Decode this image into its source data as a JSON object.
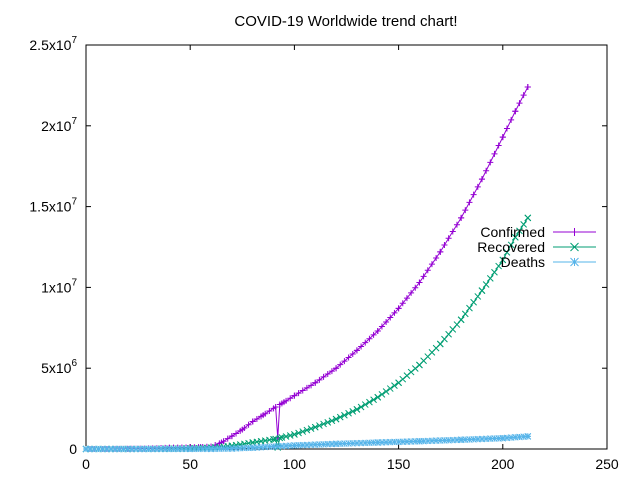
{
  "chart_data": {
    "type": "line",
    "title": "COVID-19 Worldwide trend chart!",
    "xlabel": "",
    "ylabel": "",
    "xlim": [
      0,
      250
    ],
    "ylim": [
      0,
      25000000
    ],
    "x_ticks": [
      "0",
      "50",
      "100",
      "150",
      "200",
      "250"
    ],
    "y_ticks": [
      {
        "value": 0,
        "base": "0",
        "exp": ""
      },
      {
        "value": 5000000,
        "base": "5x10",
        "exp": "6"
      },
      {
        "value": 10000000,
        "base": "1x10",
        "exp": "7"
      },
      {
        "value": 15000000,
        "base": "1.5x10",
        "exp": "7"
      },
      {
        "value": 20000000,
        "base": "2x10",
        "exp": "7"
      },
      {
        "value": 25000000,
        "base": "2.5x10",
        "exp": "7"
      }
    ],
    "grid": false,
    "legend_position": "right",
    "series": [
      {
        "name": "Confirmed",
        "color": "#9400d3",
        "marker": "plus",
        "points": [
          [
            0,
            600
          ],
          [
            10,
            1000
          ],
          [
            20,
            10000
          ],
          [
            30,
            30000
          ],
          [
            40,
            80000
          ],
          [
            50,
            100000
          ],
          [
            55,
            120000
          ],
          [
            60,
            150000
          ],
          [
            65,
            400000
          ],
          [
            70,
            800000
          ],
          [
            75,
            1200000
          ],
          [
            80,
            1700000
          ],
          [
            85,
            2100000
          ],
          [
            91,
            2600000
          ],
          [
            92,
            700000
          ],
          [
            93,
            2750000
          ],
          [
            95,
            2900000
          ],
          [
            100,
            3300000
          ],
          [
            110,
            4100000
          ],
          [
            120,
            5000000
          ],
          [
            130,
            6100000
          ],
          [
            140,
            7300000
          ],
          [
            150,
            8700000
          ],
          [
            160,
            10300000
          ],
          [
            170,
            12200000
          ],
          [
            180,
            14300000
          ],
          [
            190,
            16700000
          ],
          [
            200,
            19300000
          ],
          [
            206,
            20900000
          ],
          [
            212,
            22400000
          ]
        ]
      },
      {
        "name": "Recovered",
        "color": "#009e73",
        "marker": "cross",
        "points": [
          [
            0,
            0
          ],
          [
            20,
            1000
          ],
          [
            30,
            5000
          ],
          [
            40,
            20000
          ],
          [
            50,
            40000
          ],
          [
            60,
            80000
          ],
          [
            70,
            200000
          ],
          [
            80,
            400000
          ],
          [
            90,
            600000
          ],
          [
            91,
            620000
          ],
          [
            92,
            100000
          ],
          [
            93,
            680000
          ],
          [
            100,
            900000
          ],
          [
            110,
            1350000
          ],
          [
            120,
            1850000
          ],
          [
            130,
            2450000
          ],
          [
            140,
            3200000
          ],
          [
            150,
            4100000
          ],
          [
            160,
            5200000
          ],
          [
            170,
            6500000
          ],
          [
            180,
            8000000
          ],
          [
            190,
            9800000
          ],
          [
            200,
            11700000
          ],
          [
            206,
            13100000
          ],
          [
            212,
            14300000
          ]
        ]
      },
      {
        "name": "Deaths",
        "color": "#56b4e9",
        "marker": "star",
        "points": [
          [
            0,
            0
          ],
          [
            30,
            1000
          ],
          [
            50,
            3000
          ],
          [
            60,
            6000
          ],
          [
            70,
            30000
          ],
          [
            80,
            80000
          ],
          [
            90,
            150000
          ],
          [
            100,
            220000
          ],
          [
            120,
            320000
          ],
          [
            140,
            400000
          ],
          [
            160,
            480000
          ],
          [
            180,
            570000
          ],
          [
            200,
            670000
          ],
          [
            212,
            780000
          ]
        ]
      }
    ]
  }
}
